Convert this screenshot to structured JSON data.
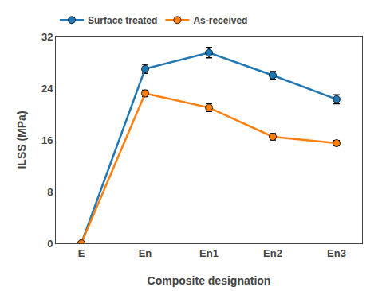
{
  "chart_data": {
    "type": "line",
    "categories": [
      "E",
      "En",
      "En1",
      "En2",
      "En3"
    ],
    "series": [
      {
        "name": "Surface treated",
        "values": [
          0.0,
          27.0,
          29.5,
          26.0,
          22.3
        ],
        "errors": [
          0.0,
          0.7,
          0.8,
          0.6,
          0.7
        ]
      },
      {
        "name": "As-received",
        "values": [
          0.0,
          23.2,
          21.0,
          16.5,
          15.5
        ],
        "errors": [
          0.0,
          0.5,
          0.6,
          0.5,
          0.4
        ]
      }
    ],
    "xlabel": "Composite designation",
    "ylabel": "ILSS (MPa)",
    "ylim": [
      0,
      32
    ],
    "yticks": [
      0,
      8,
      16,
      24,
      32
    ],
    "marker": "circle",
    "legend": "upper left",
    "grid": false
  }
}
